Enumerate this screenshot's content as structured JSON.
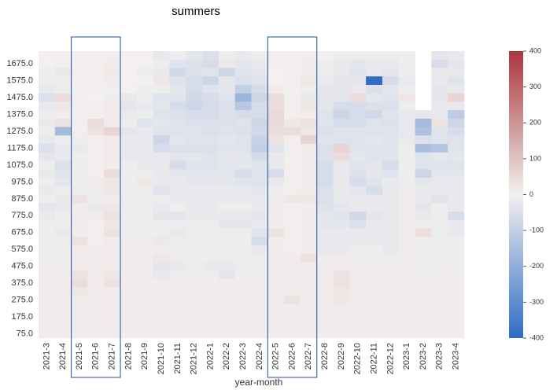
{
  "chart_data": {
    "type": "heatmap",
    "title": "summers",
    "x_label": "year-month",
    "x_categories": [
      "2021-3",
      "2021-4",
      "2021-5",
      "2021-6",
      "2021-7",
      "2021-8",
      "2021-9",
      "2021-10",
      "2021-11",
      "2021-12",
      "2022-1",
      "2022-2",
      "2022-3",
      "2022-4",
      "2022-5",
      "2022-6",
      "2022-7",
      "2022-8",
      "2022-9",
      "2022-10",
      "2022-11",
      "2022-12",
      "2023-1",
      "2023-2",
      "2023-3",
      "2023-4"
    ],
    "y_categories": [
      null,
      "1675.0",
      null,
      "1575.0",
      null,
      "1475.0",
      null,
      "1375.0",
      null,
      "1275.0",
      null,
      "1175.0",
      null,
      "1075.0",
      null,
      "975.0",
      null,
      "875.0",
      null,
      "775.0",
      null,
      "675.0",
      null,
      "575.0",
      null,
      "475.0",
      null,
      "375.0",
      null,
      "275.0",
      null,
      "175.0",
      null,
      "75.0"
    ],
    "values": [
      [
        0,
        5,
        5,
        5,
        5,
        0,
        0,
        -20,
        -10,
        -30,
        -50,
        -10,
        -20,
        -10,
        5,
        5,
        5,
        0,
        -10,
        -10,
        -10,
        -10,
        -10,
        null,
        -30,
        -20
      ],
      [
        0,
        5,
        5,
        5,
        10,
        0,
        0,
        -10,
        -40,
        -50,
        -60,
        -20,
        -30,
        -20,
        5,
        5,
        10,
        -10,
        -20,
        -30,
        -20,
        -20,
        -10,
        null,
        -60,
        -30
      ],
      [
        -10,
        -20,
        5,
        5,
        15,
        0,
        -10,
        -20,
        -70,
        -50,
        -40,
        -80,
        -40,
        -30,
        0,
        5,
        10,
        -10,
        -20,
        -40,
        -20,
        -30,
        -10,
        null,
        -20,
        -20
      ],
      [
        -10,
        -10,
        5,
        5,
        10,
        0,
        0,
        20,
        -40,
        -60,
        -80,
        -30,
        -50,
        -40,
        0,
        5,
        20,
        -20,
        -30,
        -30,
        -400,
        -60,
        -20,
        null,
        -20,
        -40
      ],
      [
        -20,
        -10,
        5,
        5,
        5,
        0,
        -10,
        -10,
        -30,
        -60,
        -40,
        -30,
        -100,
        -60,
        10,
        5,
        10,
        -30,
        -30,
        -20,
        -50,
        -30,
        -10,
        null,
        -30,
        -20
      ],
      [
        -50,
        40,
        5,
        0,
        -10,
        -20,
        -10,
        -40,
        -40,
        -70,
        -60,
        -40,
        -180,
        -80,
        40,
        5,
        -20,
        -30,
        -30,
        40,
        -30,
        -40,
        20,
        null,
        -30,
        60
      ],
      [
        -20,
        20,
        5,
        5,
        10,
        -30,
        -20,
        -30,
        -60,
        -80,
        -60,
        -50,
        -120,
        -60,
        40,
        5,
        20,
        -30,
        -60,
        -60,
        -50,
        -50,
        -10,
        null,
        -20,
        -20
      ],
      [
        -10,
        -10,
        5,
        5,
        10,
        -20,
        -10,
        -40,
        -50,
        -60,
        -60,
        -50,
        -60,
        -60,
        50,
        5,
        10,
        -40,
        -80,
        -60,
        -70,
        -40,
        -20,
        -30,
        -20,
        -110
      ],
      [
        -20,
        30,
        5,
        40,
        10,
        -10,
        -40,
        -30,
        -40,
        -50,
        -50,
        -50,
        -40,
        -80,
        50,
        20,
        30,
        -40,
        -60,
        -60,
        -40,
        -50,
        -20,
        -160,
        30,
        -80
      ],
      [
        -10,
        -160,
        5,
        30,
        60,
        -30,
        -20,
        -40,
        -40,
        -40,
        -50,
        -40,
        -50,
        -70,
        40,
        40,
        20,
        -50,
        -40,
        -40,
        -40,
        -40,
        -20,
        -140,
        -40,
        -60
      ],
      [
        -20,
        -10,
        -10,
        5,
        10,
        -20,
        -20,
        -80,
        -30,
        -40,
        -40,
        -30,
        -40,
        -90,
        30,
        5,
        60,
        -40,
        -40,
        -40,
        -30,
        -40,
        -20,
        -50,
        -40,
        -40
      ],
      [
        -50,
        -20,
        -20,
        5,
        10,
        -20,
        -20,
        -60,
        -50,
        -50,
        -50,
        -40,
        -40,
        -100,
        -40,
        5,
        10,
        -50,
        60,
        -40,
        -40,
        -40,
        -10,
        -150,
        -130,
        -40
      ],
      [
        -30,
        -20,
        -10,
        5,
        10,
        -20,
        -20,
        -20,
        -30,
        -30,
        -40,
        -30,
        -30,
        -60,
        -20,
        5,
        10,
        -50,
        40,
        -30,
        -40,
        -40,
        -10,
        -40,
        -30,
        -30
      ],
      [
        -10,
        -50,
        -10,
        5,
        10,
        -10,
        -20,
        -20,
        -60,
        -40,
        -40,
        -30,
        -30,
        -40,
        -20,
        5,
        10,
        -60,
        -20,
        -40,
        -30,
        -60,
        -10,
        -40,
        -40,
        -40
      ],
      [
        -20,
        -40,
        -10,
        5,
        40,
        -10,
        -10,
        -20,
        -30,
        -30,
        -30,
        -30,
        -60,
        -40,
        -60,
        5,
        10,
        -60,
        -20,
        -50,
        -30,
        -40,
        -10,
        -80,
        -30,
        -30
      ],
      [
        -10,
        -30,
        -10,
        10,
        20,
        -10,
        20,
        -20,
        -20,
        -30,
        -30,
        -30,
        -40,
        -40,
        -20,
        5,
        10,
        -60,
        -20,
        -60,
        -40,
        -20,
        -10,
        -30,
        -20,
        -20
      ],
      [
        -20,
        -10,
        -10,
        -10,
        20,
        -10,
        -10,
        -40,
        -20,
        -20,
        -20,
        -20,
        -20,
        -30,
        -10,
        5,
        10,
        -50,
        -20,
        -30,
        -60,
        -20,
        10,
        -20,
        -20,
        -20
      ],
      [
        -10,
        -20,
        30,
        -10,
        10,
        -10,
        -10,
        -10,
        -20,
        -20,
        -20,
        -20,
        -20,
        -20,
        -10,
        20,
        20,
        -50,
        -20,
        -20,
        -20,
        -20,
        10,
        -20,
        -40,
        -20
      ],
      [
        -30,
        -20,
        10,
        -20,
        20,
        -10,
        -10,
        -20,
        -10,
        -20,
        -20,
        -10,
        -10,
        -20,
        10,
        5,
        10,
        -40,
        -30,
        -20,
        -20,
        -20,
        10,
        -30,
        -10,
        -20
      ],
      [
        -20,
        -10,
        10,
        10,
        30,
        -10,
        -10,
        -30,
        -30,
        -20,
        -20,
        -20,
        -20,
        -30,
        10,
        5,
        10,
        -30,
        -40,
        -70,
        -30,
        -20,
        10,
        -20,
        -10,
        -60
      ],
      [
        -10,
        -10,
        10,
        5,
        20,
        -10,
        -10,
        -10,
        -10,
        -10,
        -10,
        -30,
        -30,
        -20,
        10,
        5,
        10,
        -30,
        -30,
        -50,
        -20,
        -20,
        10,
        -10,
        -10,
        -20
      ],
      [
        -10,
        -20,
        10,
        5,
        30,
        -10,
        -10,
        -10,
        -20,
        -10,
        -10,
        -10,
        -10,
        -40,
        30,
        5,
        10,
        -20,
        -20,
        -20,
        -20,
        -20,
        10,
        40,
        -10,
        -20
      ],
      [
        -10,
        -10,
        30,
        5,
        10,
        10,
        -10,
        -20,
        -10,
        -10,
        -10,
        -10,
        -10,
        -60,
        10,
        5,
        10,
        -20,
        -20,
        -20,
        -20,
        -20,
        10,
        -10,
        -10,
        -10
      ],
      [
        -10,
        -10,
        10,
        10,
        10,
        10,
        10,
        10,
        -10,
        -10,
        -10,
        -10,
        -10,
        -20,
        10,
        5,
        10,
        -20,
        -20,
        -10,
        -10,
        -20,
        10,
        -10,
        -10,
        -10
      ],
      [
        -10,
        -10,
        10,
        10,
        10,
        10,
        10,
        20,
        -10,
        -10,
        -10,
        -10,
        -10,
        -10,
        10,
        10,
        30,
        -10,
        10,
        -10,
        -10,
        -10,
        10,
        -10,
        -10,
        -10
      ],
      [
        -10,
        -10,
        10,
        10,
        10,
        10,
        10,
        -30,
        -20,
        -10,
        -20,
        -20,
        -10,
        -10,
        10,
        10,
        10,
        -10,
        10,
        -10,
        -10,
        -10,
        10,
        -10,
        -10,
        -10
      ],
      [
        10,
        10,
        30,
        10,
        20,
        10,
        10,
        -20,
        -10,
        -10,
        -10,
        -30,
        -10,
        -10,
        10,
        10,
        10,
        10,
        30,
        10,
        10,
        10,
        10,
        -10,
        10,
        10
      ],
      [
        10,
        10,
        40,
        10,
        30,
        10,
        10,
        10,
        10,
        10,
        10,
        10,
        10,
        10,
        10,
        10,
        10,
        10,
        30,
        10,
        10,
        10,
        10,
        10,
        10,
        10
      ],
      [
        10,
        10,
        20,
        10,
        10,
        10,
        10,
        10,
        10,
        10,
        10,
        10,
        10,
        10,
        10,
        10,
        10,
        10,
        20,
        10,
        10,
        10,
        10,
        10,
        10,
        10
      ],
      [
        10,
        10,
        10,
        10,
        10,
        10,
        10,
        10,
        10,
        10,
        10,
        10,
        10,
        10,
        10,
        30,
        10,
        10,
        20,
        10,
        10,
        10,
        10,
        10,
        10,
        10
      ],
      [
        10,
        10,
        10,
        10,
        10,
        10,
        10,
        10,
        10,
        10,
        10,
        10,
        10,
        10,
        10,
        10,
        10,
        10,
        10,
        10,
        10,
        10,
        10,
        10,
        10,
        10
      ],
      [
        10,
        10,
        10,
        10,
        10,
        10,
        10,
        10,
        10,
        10,
        10,
        10,
        10,
        10,
        10,
        10,
        10,
        10,
        10,
        10,
        10,
        10,
        10,
        10,
        10,
        10
      ],
      [
        10,
        10,
        10,
        10,
        10,
        10,
        10,
        10,
        10,
        10,
        10,
        10,
        10,
        10,
        10,
        10,
        10,
        10,
        10,
        10,
        10,
        10,
        10,
        10,
        10,
        10
      ],
      [
        10,
        10,
        10,
        10,
        10,
        10,
        10,
        10,
        10,
        10,
        10,
        10,
        10,
        10,
        10,
        10,
        10,
        10,
        10,
        10,
        10,
        10,
        10,
        10,
        10,
        10
      ]
    ],
    "zlim": [
      -400,
      400
    ],
    "zticks": [
      -400,
      -300,
      -200,
      -100,
      0,
      100,
      200,
      300,
      400
    ],
    "colors": [
      "#2f6cc5",
      "#f3f0ef",
      "#a9373b"
    ]
  }
}
